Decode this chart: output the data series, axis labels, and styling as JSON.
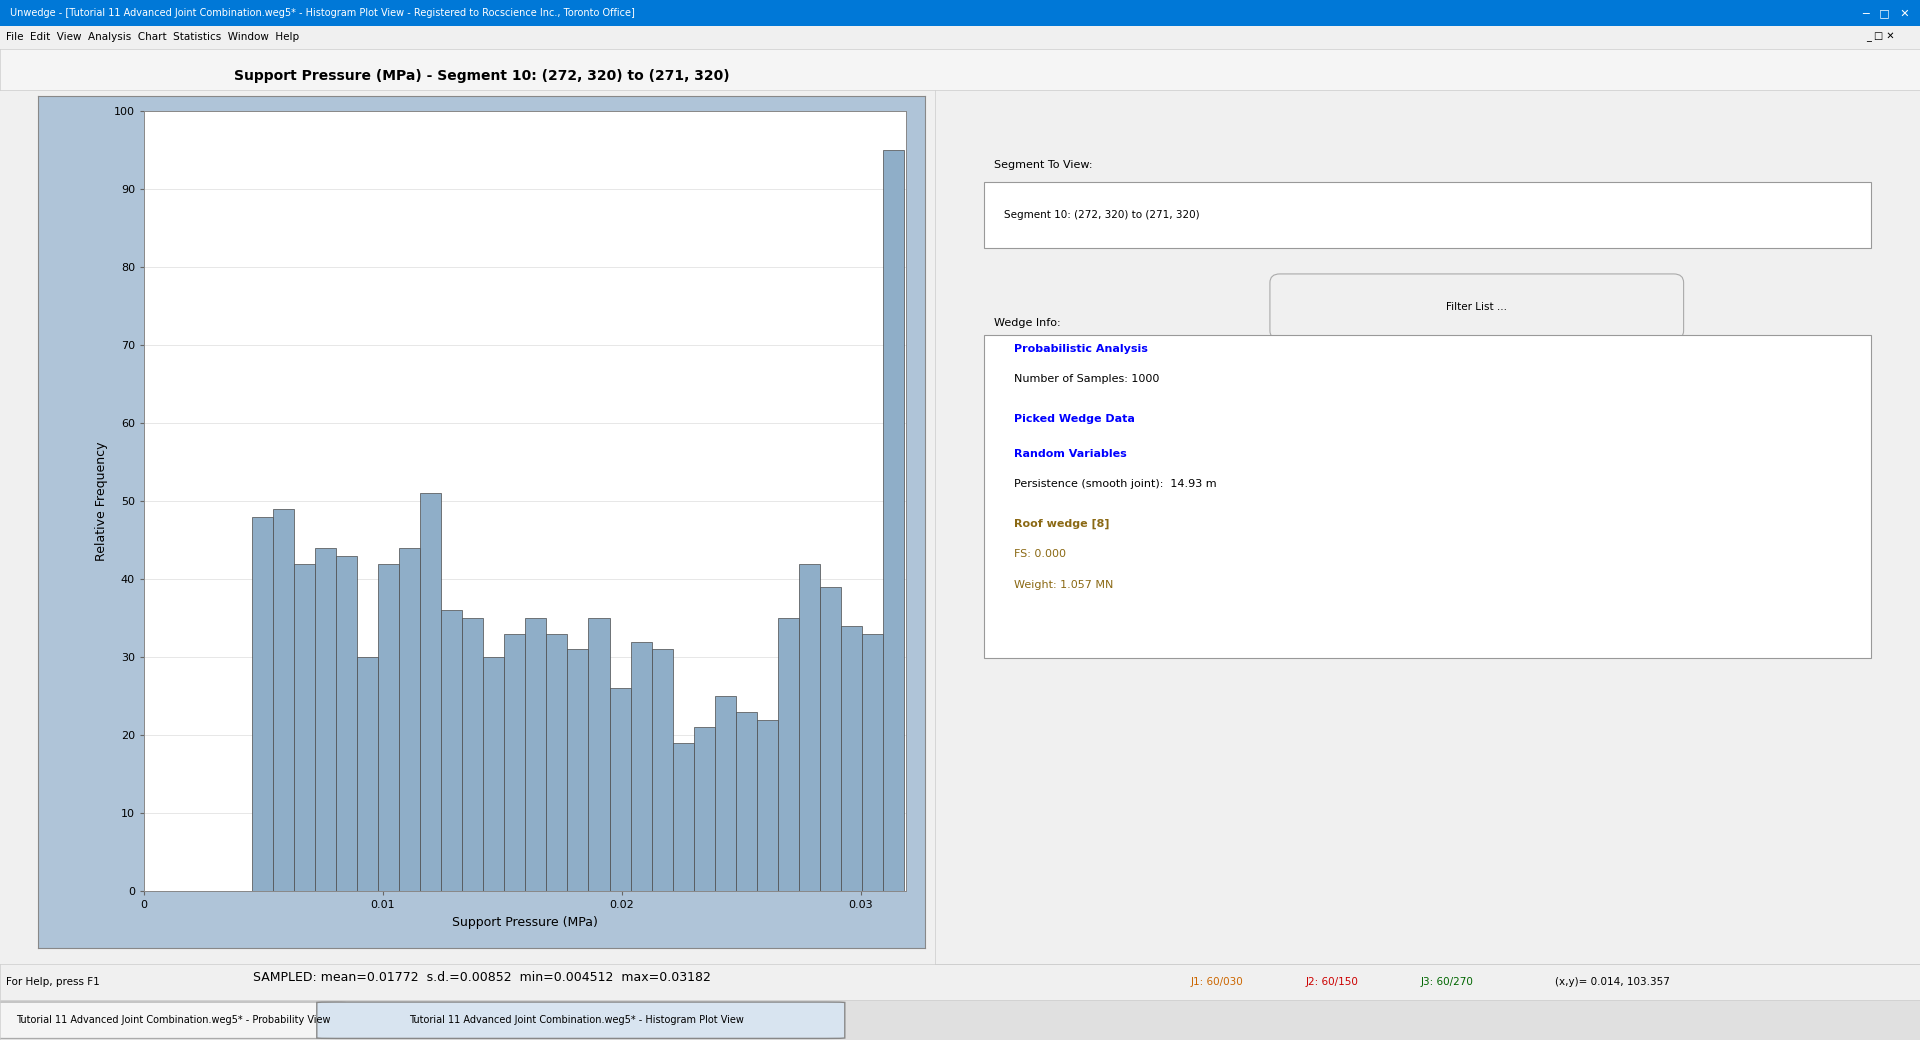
{
  "title": "Support Pressure (MPa) - Segment 10: (272, 320) to (271, 320)",
  "xlabel": "Support Pressure (MPa)",
  "ylabel": "Relative Frequency",
  "bar_color": "#8faec8",
  "bar_edge_color": "#4a4a4a",
  "background_outer": "#afc4d8",
  "background_inner": "#ffffff",
  "bg_app": "#f0f0f0",
  "bg_titlebar": "#e8e8e8",
  "bg_toolbar": "#f5f5f5",
  "bg_right_panel": "#f0f0f0",
  "ylim": [
    0,
    100
  ],
  "bar_heights": [
    48,
    49,
    42,
    44,
    43,
    30,
    42,
    44,
    51,
    36,
    35,
    30,
    33,
    35,
    33,
    31,
    35,
    26,
    32,
    31,
    19,
    21,
    25,
    23,
    22,
    35,
    42,
    39,
    34,
    33,
    95
  ],
  "n_bars": 31,
  "x_min": 0.004512,
  "x_max": 0.03182,
  "stats_text": "SAMPLED: mean=0.01772  s.d.=0.00852  min=0.004512  max=0.03182",
  "title_fontsize": 10,
  "axis_fontsize": 8,
  "stats_fontsize": 9,
  "app_title": "Unwedge - [Tutorial 11 Advanced Joint Combination.weg5* - Histogram Plot View - Registered to Rocscience Inc., Toronto Office]",
  "menu_text": "File  Edit  View  Analysis  Chart  Statistics  Window  Help",
  "right_panel_label1": "Segment To View:",
  "right_dropdown": "Segment 10: (272, 320) to (271, 320)",
  "right_label2": "Wedge Info:",
  "right_text1": "Probabilistic Analysis",
  "right_text2": "Number of Samples: 1000",
  "right_text3": "Picked Wedge Data",
  "right_text4": "Random Variables",
  "right_text5": "Persistence (smooth joint):  14.93 m",
  "right_text6": "Roof wedge [8]",
  "right_text7": "FS: 0.000",
  "right_text8": "Weight: 1.057 MN",
  "statusbar_left": "For Help, press F1",
  "statusbar_j1": "J1: 60/030",
  "statusbar_j2": "J2: 60/150",
  "statusbar_j3": "J3: 60/270",
  "statusbar_xy": "(x,y)= 0.014, 103.357",
  "taskbar_item1": "Tutorial 11 Advanced Joint Combination.weg5* - Probability View",
  "taskbar_item2": "Tutorial 11 Advanced Joint Combination.weg5* - Histogram Plot View"
}
